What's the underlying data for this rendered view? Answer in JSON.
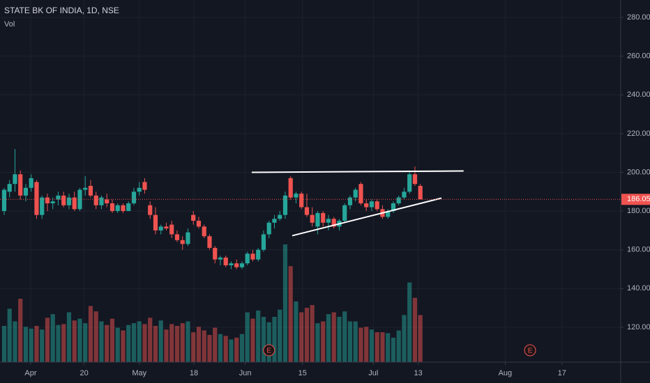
{
  "chart_data": {
    "type": "candlestick",
    "title": "STATE BK OF INDIA, 1D, NSE",
    "volume_label": "Vol",
    "up_color": "#26a69a",
    "down_color": "#ef5350",
    "grid": true,
    "ylim": [
      102,
      289
    ],
    "yticks": [
      {
        "value": 120,
        "label": "120.00"
      },
      {
        "value": 140,
        "label": "140.00"
      },
      {
        "value": 160,
        "label": "160.00"
      },
      {
        "value": 180,
        "label": "180.00"
      },
      {
        "value": 200,
        "label": "200.00"
      },
      {
        "value": 220,
        "label": "220.00"
      },
      {
        "value": 240,
        "label": "240.00"
      },
      {
        "value": 260,
        "label": "260.00"
      },
      {
        "value": 280,
        "label": "280.00"
      }
    ],
    "xlim": [
      -0.77,
      114.07
    ],
    "xticks": [
      {
        "value": 4.9,
        "label": "Apr"
      },
      {
        "value": 14.8,
        "label": "20"
      },
      {
        "value": 25,
        "label": "May"
      },
      {
        "value": 35.1,
        "label": "18"
      },
      {
        "value": 44.6,
        "label": "Jun"
      },
      {
        "value": 55.2,
        "label": "15"
      },
      {
        "value": 68.3,
        "label": "Jul"
      },
      {
        "value": 76.6,
        "label": "13"
      },
      {
        "value": 92.7,
        "label": "Aug"
      },
      {
        "value": 103.2,
        "label": "17"
      }
    ],
    "last_price": 186.05,
    "volume_ylim": [
      0,
      400
    ],
    "open": [
      180,
      190,
      194,
      199,
      188,
      192,
      195,
      178,
      187,
      184,
      186,
      188,
      183,
      187,
      181,
      191,
      193,
      188,
      183,
      186,
      184,
      180,
      183,
      180,
      184,
      190,
      195,
      183,
      178,
      170,
      172,
      173,
      168,
      165,
      163,
      178,
      175,
      172,
      167,
      161,
      155,
      156,
      152,
      153,
      151,
      153,
      158,
      155,
      160,
      168,
      174,
      176,
      178,
      197,
      187,
      189,
      182,
      178,
      172,
      179,
      174,
      176,
      172,
      175,
      183,
      187,
      194,
      184,
      182,
      185,
      181,
      177,
      180,
      184,
      187,
      190,
      199,
      193
    ],
    "high": [
      192,
      196,
      212,
      201,
      194,
      199,
      196,
      188,
      189,
      187,
      190,
      190,
      189,
      190,
      192,
      198,
      196,
      190,
      188,
      189,
      186,
      184,
      184,
      185,
      192,
      195,
      197,
      185,
      182,
      173,
      174,
      175,
      170,
      167,
      171,
      180,
      177,
      173,
      168,
      162,
      157,
      157,
      154,
      155,
      154,
      159,
      160,
      161,
      170,
      175,
      178,
      180,
      190,
      198,
      190,
      190,
      189,
      182,
      180,
      180,
      178,
      177,
      176,
      184,
      188,
      192,
      195,
      186,
      186,
      186,
      183,
      181,
      185,
      188,
      192,
      201,
      203,
      194
    ],
    "low": [
      178,
      187,
      190,
      186,
      185,
      190,
      176,
      176,
      180,
      181,
      183,
      182,
      181,
      180,
      180,
      188,
      187,
      181,
      181,
      182,
      179,
      179,
      179,
      180,
      183,
      188,
      189,
      176,
      168,
      168,
      170,
      166,
      164,
      160,
      162,
      173,
      171,
      166,
      160,
      153,
      152,
      151,
      150,
      150,
      150,
      152,
      154,
      154,
      159,
      166,
      171,
      175,
      176,
      186,
      184,
      181,
      177,
      172,
      168,
      172,
      170,
      171,
      170,
      174,
      181,
      185,
      183,
      180,
      180,
      180,
      176,
      176,
      179,
      183,
      186,
      189,
      193,
      186
    ],
    "close": [
      191,
      194,
      199,
      188,
      192,
      197,
      178,
      187,
      184,
      185,
      188,
      183,
      187,
      181,
      191,
      192,
      188,
      183,
      187,
      184,
      180,
      183,
      180,
      184,
      190,
      192,
      191,
      178,
      170,
      172,
      171,
      168,
      165,
      163,
      169,
      175,
      172,
      167,
      161,
      155,
      156,
      152,
      153,
      151,
      153,
      158,
      155,
      160,
      168,
      174,
      176,
      178,
      188,
      187,
      189,
      182,
      178,
      174,
      179,
      174,
      176,
      172,
      175,
      183,
      187,
      191,
      184,
      182,
      185,
      181,
      177,
      180,
      184,
      187,
      190,
      199,
      194,
      186.05
    ],
    "volume": [
      80,
      118,
      90,
      140,
      78,
      74,
      80,
      72,
      98,
      106,
      82,
      84,
      110,
      92,
      96,
      86,
      124,
      112,
      90,
      82,
      96,
      76,
      70,
      82,
      86,
      90,
      84,
      98,
      80,
      92,
      72,
      84,
      80,
      86,
      90,
      66,
      78,
      70,
      60,
      76,
      62,
      58,
      50,
      54,
      62,
      110,
      96,
      114,
      100,
      88,
      100,
      116,
      260,
      212,
      134,
      110,
      120,
      126,
      86,
      90,
      106,
      110,
      100,
      112,
      90,
      90,
      76,
      78,
      72,
      66,
      66,
      64,
      54,
      70,
      104,
      176,
      142,
      104
    ],
    "trendlines": [
      {
        "x": [
          45.8,
          85.0
        ],
        "y": [
          200,
          200.7
        ]
      },
      {
        "x": [
          53.3,
          80.9
        ],
        "y": [
          167.3,
          186.7
        ]
      }
    ],
    "events": [
      {
        "x": 49,
        "label": "E"
      },
      {
        "x": 97.3,
        "label": "E"
      }
    ]
  }
}
